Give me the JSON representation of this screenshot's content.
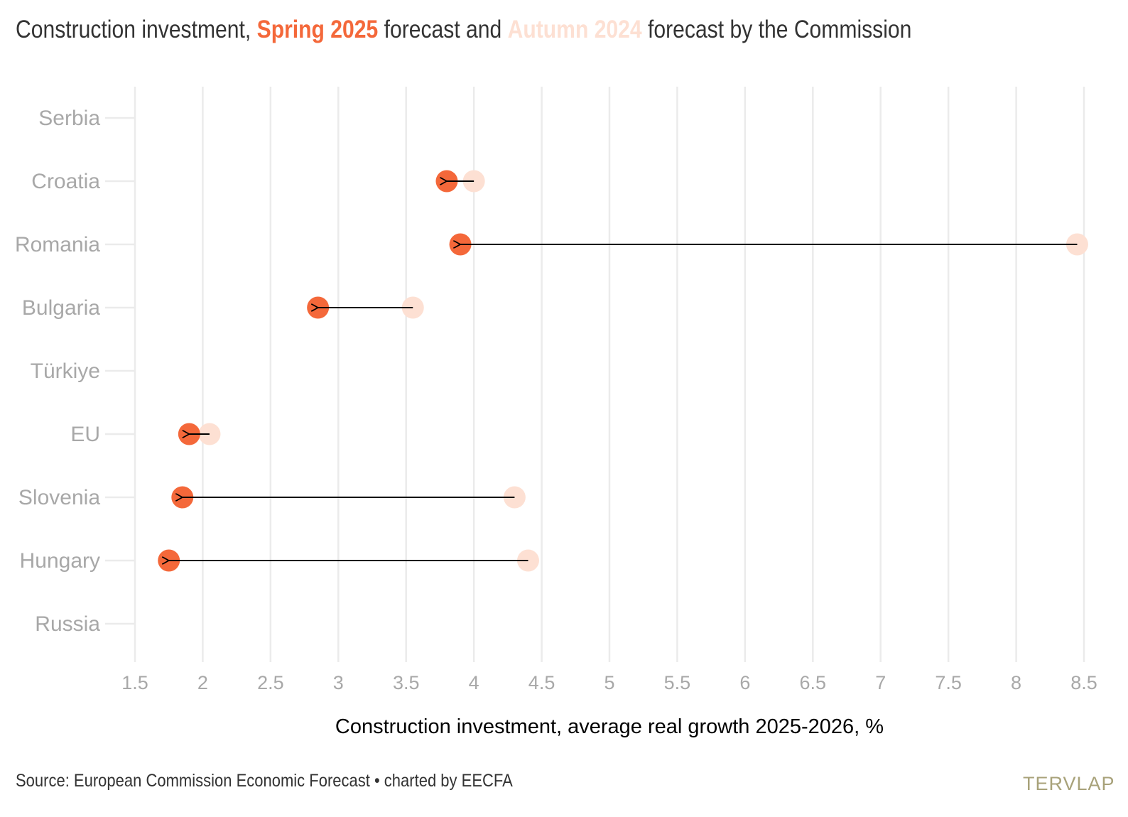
{
  "title": {
    "part1": "Construction investment, ",
    "spring": "Spring 2025",
    "part2": " forecast and ",
    "autumn": "Autumn 2024",
    "part3": " forecast by the Commission"
  },
  "colors": {
    "spring": "#f4683a",
    "autumn": "#fde0d3",
    "grid": "#ebebeb",
    "tick_label": "#a8a8a8",
    "arrow": "#000000"
  },
  "source": "Source: European Commission Economic Forecast • charted by EECFA",
  "logo": "TERVLAP",
  "chart_data": {
    "type": "dumbbell-arrow",
    "xlabel": "Construction investment, average real growth 2025-2026, %",
    "xlim": [
      1.5,
      8.5
    ],
    "xticks": [
      "1.5",
      "2",
      "2.5",
      "3",
      "3.5",
      "4",
      "4.5",
      "5",
      "5.5",
      "6",
      "6.5",
      "7",
      "7.5",
      "8",
      "8.5"
    ],
    "categories": [
      "Serbia",
      "Croatia",
      "Romania",
      "Bulgaria",
      "Türkiye",
      "EU",
      "Slovenia",
      "Hungary",
      "Russia"
    ],
    "series": [
      {
        "name": "Spring 2025",
        "values": [
          null,
          3.8,
          3.9,
          2.85,
          null,
          1.9,
          1.85,
          1.75,
          null
        ]
      },
      {
        "name": "Autumn 2024",
        "values": [
          null,
          4.0,
          8.45,
          3.55,
          null,
          2.05,
          4.3,
          4.4,
          null
        ]
      }
    ],
    "grid": true
  }
}
